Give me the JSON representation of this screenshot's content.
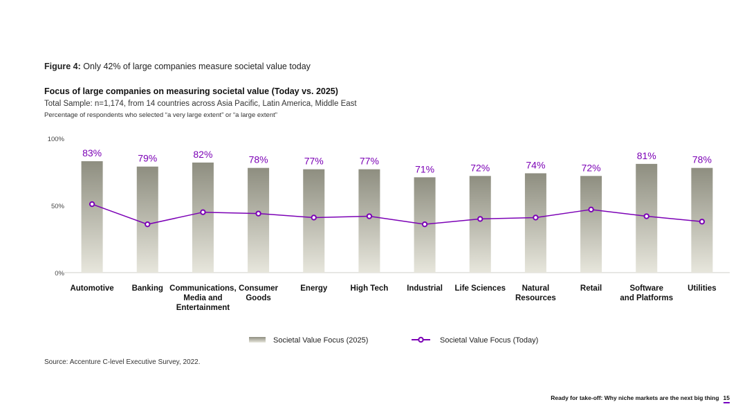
{
  "figure": {
    "label": "Figure 4:",
    "caption": " Only 42% of large companies measure societal value today"
  },
  "footer": {
    "text": "Ready for take-off: Why niche markets are the next big thing",
    "page": "15"
  },
  "source": "Source: Accenture C-level Executive Survey, 2022.",
  "colors": {
    "accent": "#7b00b5",
    "bar_top": "#8e8e80",
    "bar_bottom": "#e7e6dc"
  },
  "chart_data": {
    "type": "bar",
    "title": "Focus of large companies on measuring societal value (Today vs. 2025)",
    "subtitle": "Total Sample: n=1,174, from 14 countries across Asia Pacific, Latin America, Middle East",
    "note": "Percentage of respondents who selected “a very large extent” or “a large extent”",
    "categories": [
      [
        "Automotive"
      ],
      [
        "Banking"
      ],
      [
        "Communications,",
        "Media and",
        "Entertainment"
      ],
      [
        "Consumer",
        "Goods"
      ],
      [
        "Energy"
      ],
      [
        "High Tech"
      ],
      [
        "Industrial"
      ],
      [
        "Life Sciences"
      ],
      [
        "Natural",
        "Resources"
      ],
      [
        "Retail"
      ],
      [
        "Software",
        "and Platforms"
      ],
      [
        "Utilities"
      ]
    ],
    "ylim": [
      0,
      100
    ],
    "yticks": [
      0,
      50,
      100
    ],
    "ytick_labels": [
      "0%",
      "50%",
      "100%"
    ],
    "series": [
      {
        "name": "Societal Value Focus (2025)",
        "kind": "bar",
        "values": [
          83,
          79,
          82,
          78,
          77,
          77,
          71,
          72,
          74,
          72,
          81,
          78
        ],
        "labels": [
          "83%",
          "79%",
          "82%",
          "78%",
          "77%",
          "77%",
          "71%",
          "72%",
          "74%",
          "72%",
          "81%",
          "78%"
        ]
      },
      {
        "name": "Societal Value Focus (Today)",
        "kind": "line",
        "values": [
          51,
          36,
          45,
          44,
          41,
          42,
          36,
          40,
          41,
          47,
          42,
          38
        ]
      }
    ],
    "legend_position": "bottom-center"
  }
}
